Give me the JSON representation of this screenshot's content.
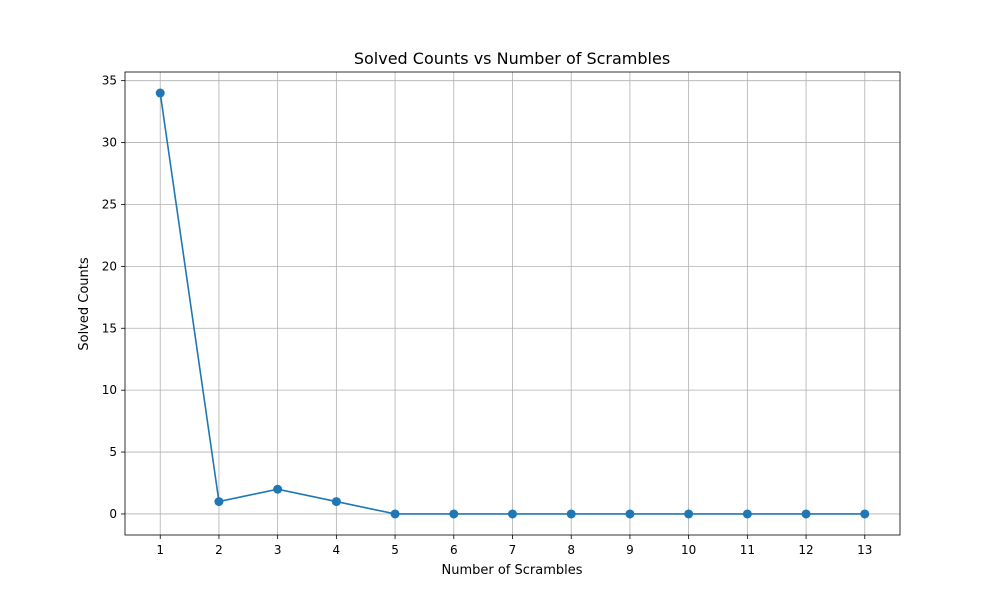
{
  "chart_data": {
    "type": "line",
    "title": "Solved Counts vs Number of Scrambles",
    "xlabel": "Number of Scrambles",
    "ylabel": "Solved Counts",
    "x": [
      1,
      2,
      3,
      4,
      5,
      6,
      7,
      8,
      9,
      10,
      11,
      12,
      13
    ],
    "series": [
      {
        "values": [
          34,
          1,
          2,
          1,
          0,
          0,
          0,
          0,
          0,
          0,
          0,
          0,
          0
        ],
        "color": "#1f77b4",
        "marker": "circle"
      }
    ],
    "xlim": [
      0.4,
      13.6
    ],
    "ylim": [
      -1.7,
      35.7
    ],
    "xticks": [
      "1",
      "2",
      "3",
      "4",
      "5",
      "6",
      "7",
      "8",
      "9",
      "10",
      "11",
      "12",
      "13"
    ],
    "yticks": [
      "0",
      "5",
      "10",
      "15",
      "20",
      "25",
      "30",
      "35"
    ],
    "grid": true,
    "legend": "none"
  }
}
